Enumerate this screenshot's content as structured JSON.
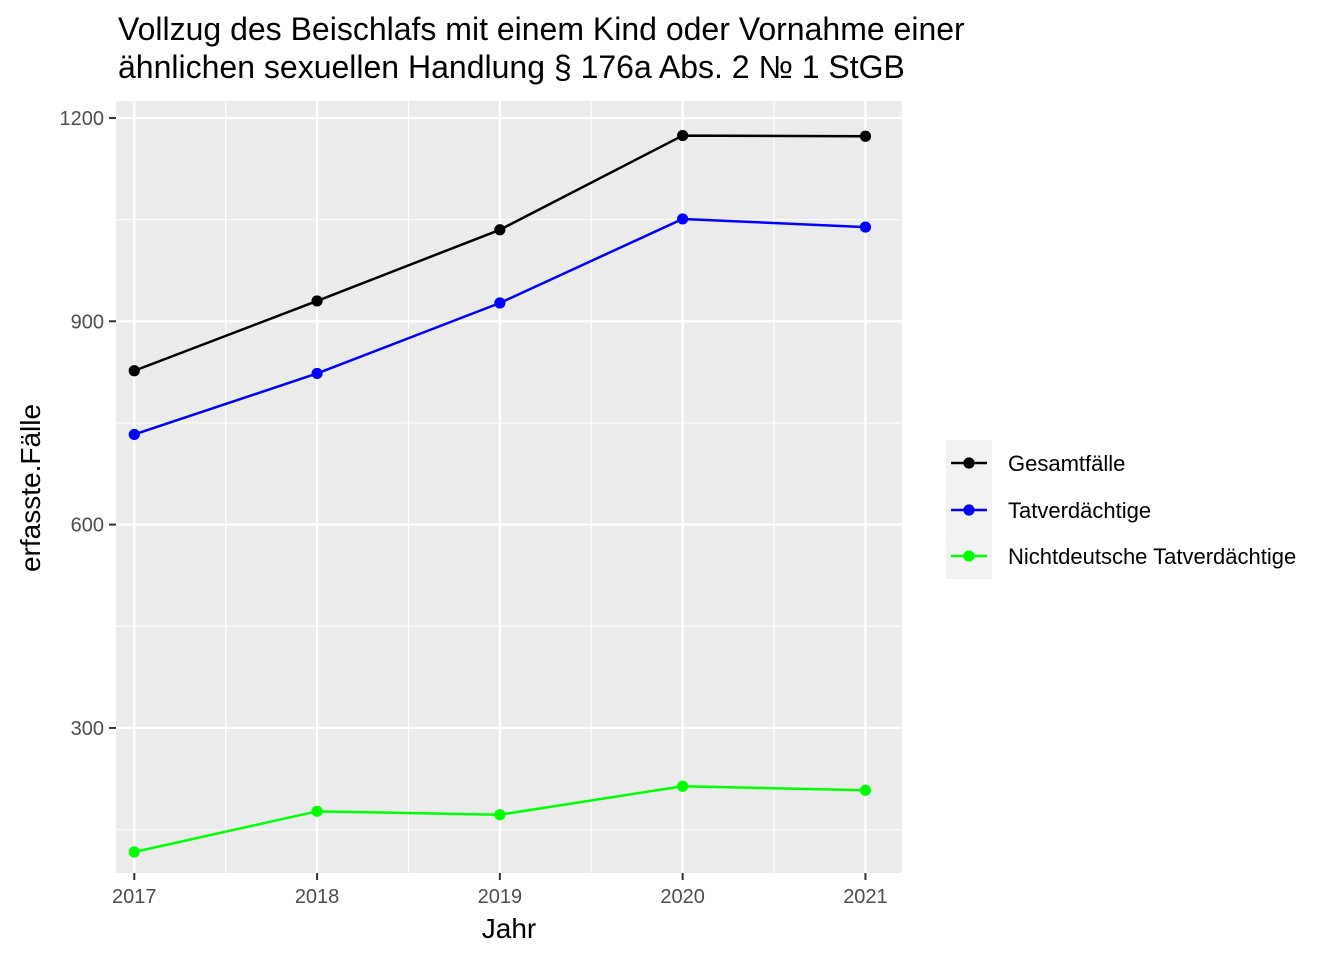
{
  "chart_data": {
    "type": "line",
    "title_lines": [
      "Vollzug des Beischlafs mit einem Kind oder Vornahme einer",
      "ähnlichen sexuellen Handlung § 176a Abs. 2 № 1 StGB"
    ],
    "xlabel": "Jahr",
    "ylabel": "erfasste.Fälle",
    "x": [
      2017,
      2018,
      2019,
      2020,
      2021
    ],
    "x_tick_labels": [
      "2017",
      "2018",
      "2019",
      "2020",
      "2021"
    ],
    "y_ticks": [
      300,
      600,
      900,
      1200
    ],
    "y_tick_labels": [
      "300",
      "600",
      "900",
      "1200"
    ],
    "xlim": [
      2016.9,
      2021.2
    ],
    "ylim": [
      86,
      1225
    ],
    "grid": true,
    "legend_position": "right",
    "series": [
      {
        "name": "Gesamtfälle",
        "color": "#000000",
        "values": [
          827,
          930,
          1035,
          1174,
          1173
        ]
      },
      {
        "name": "Tatverdächtige",
        "color": "#0000ff",
        "values": [
          733,
          823,
          927,
          1051,
          1039
        ]
      },
      {
        "name": "Nichtdeutsche Tatverdächtige",
        "color": "#00ff00",
        "values": [
          117,
          177,
          172,
          214,
          208
        ]
      }
    ]
  }
}
